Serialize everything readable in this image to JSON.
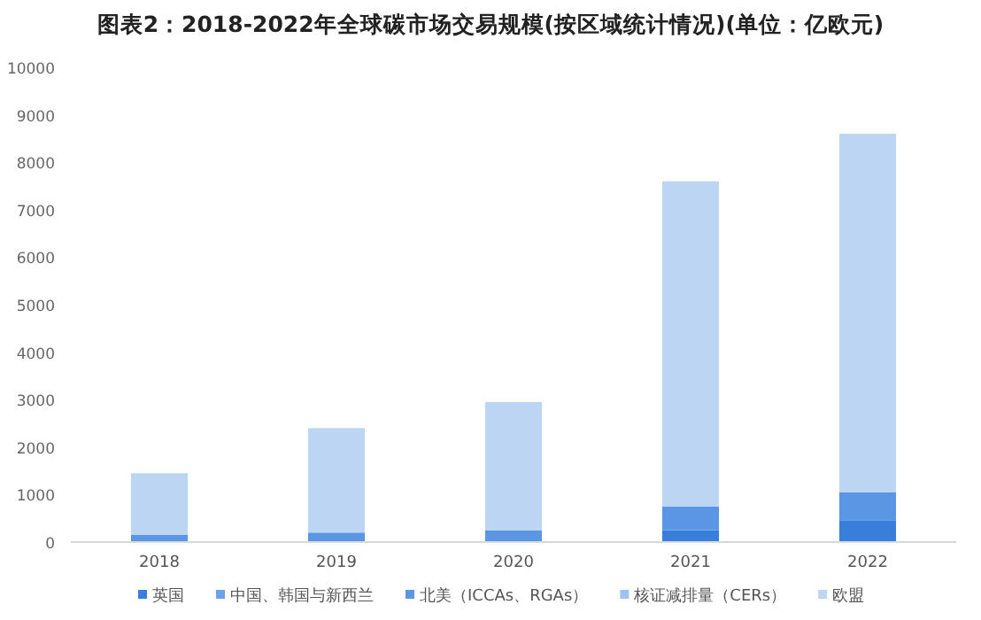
{
  "chart_data": {
    "type": "bar",
    "title": "图表2：2018-2022年全球碳市场交易规模(按区域统计情况)(单位：亿欧元)",
    "categories": [
      "2018",
      "2019",
      "2020",
      "2021",
      "2022"
    ],
    "stacked": true,
    "series": [
      {
        "name": "英国",
        "color": "#3a7edc",
        "values": [
          0,
          0,
          0,
          250,
          450
        ]
      },
      {
        "name": "中国、韩国与新西兰",
        "color": "#6aa3e8",
        "values": [
          0,
          0,
          0,
          0,
          0
        ]
      },
      {
        "name": "北美（ICCAs、RGAs）",
        "color": "#5a96e4",
        "values": [
          150,
          200,
          250,
          500,
          600
        ]
      },
      {
        "name": "核证减排量（CERs）",
        "color": "#9dc3f0",
        "values": [
          0,
          0,
          0,
          0,
          0
        ]
      },
      {
        "name": "欧盟",
        "color": "#bcd5f3",
        "values": [
          1300,
          2200,
          2700,
          6850,
          7550
        ]
      }
    ],
    "ylim": [
      0,
      10000
    ],
    "yticks": [
      0,
      1000,
      2000,
      3000,
      4000,
      5000,
      6000,
      7000,
      8000,
      9000,
      10000
    ],
    "grid": false,
    "legend": "bottom"
  }
}
